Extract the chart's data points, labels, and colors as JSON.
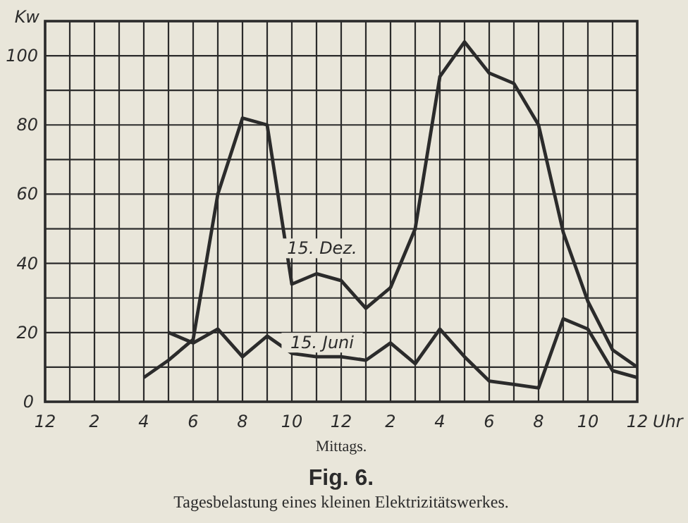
{
  "chart_data": {
    "type": "line",
    "title": "Fig. 6.",
    "subtitle": "Tagesbelastung eines kleinen Elektrizitätswerkes.",
    "xlabel": "Uhr",
    "ylabel": "Kw",
    "annotations": [
      "Mittags."
    ],
    "categories": [
      "12",
      null,
      "2",
      null,
      "4",
      null,
      "6",
      null,
      "8",
      null,
      "10",
      null,
      "12",
      null,
      "2",
      null,
      "4",
      null,
      "6",
      null,
      "8",
      null,
      "10",
      null,
      "12"
    ],
    "ylim": [
      0,
      110
    ],
    "yticks": [
      0,
      {
        "value": 10,
        "label": null
      },
      20,
      {
        "value": 30,
        "label": null
      },
      40,
      {
        "value": 50,
        "label": null
      },
      60,
      {
        "value": 70,
        "label": null
      },
      80,
      {
        "value": 90,
        "label": null
      },
      100,
      {
        "value": 110,
        "label": null
      }
    ],
    "grid": true,
    "marker": "none",
    "line_style": "solid",
    "series": [
      {
        "name": "15. Dez.",
        "color": "#2b2b2b",
        "values": [
          null,
          null,
          null,
          null,
          7,
          12,
          18,
          60,
          82,
          80,
          34,
          37,
          35,
          27,
          33,
          50,
          94,
          104,
          95,
          92,
          80,
          49,
          29,
          15,
          10
        ]
      },
      {
        "name": "15. Juni",
        "color": "#2b2b2b",
        "values": [
          null,
          null,
          null,
          null,
          null,
          20,
          17,
          21,
          13,
          19,
          14,
          13,
          13,
          12,
          17,
          11,
          21,
          13,
          6,
          5,
          4,
          24,
          21,
          9,
          7
        ]
      }
    ]
  }
}
